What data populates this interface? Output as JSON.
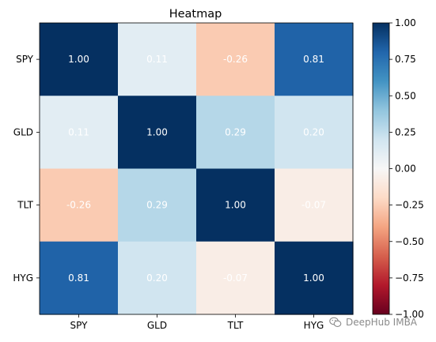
{
  "chart_data": {
    "type": "heatmap",
    "title": "Heatmap",
    "rows": [
      "SPY",
      "GLD",
      "TLT",
      "HYG"
    ],
    "columns": [
      "SPY",
      "GLD",
      "TLT",
      "HYG"
    ],
    "values": [
      [
        1.0,
        0.11,
        -0.26,
        0.81
      ],
      [
        0.11,
        1.0,
        0.29,
        0.2
      ],
      [
        -0.26,
        0.29,
        1.0,
        -0.07
      ],
      [
        0.81,
        0.2,
        -0.07,
        1.0
      ]
    ],
    "value_labels": [
      [
        "1.00",
        "0.11",
        "-0.26",
        "0.81"
      ],
      [
        "0.11",
        "1.00",
        "0.29",
        "0.20"
      ],
      [
        "-0.26",
        "0.29",
        "1.00",
        "-0.07"
      ],
      [
        "0.81",
        "0.20",
        "-0.07",
        "1.00"
      ]
    ],
    "colormap": "RdBu",
    "vmin": -1.0,
    "vmax": 1.0,
    "colorbar": {
      "ticks": [
        1.0,
        0.75,
        0.5,
        0.25,
        0.0,
        -0.25,
        -0.5,
        -0.75,
        -1.0
      ],
      "tick_labels": [
        "1.00",
        "0.75",
        "0.50",
        "0.25",
        "0.00",
        "−0.25",
        "−0.50",
        "−0.75",
        "−1.00"
      ],
      "placement": "right"
    },
    "grid": false
  },
  "watermark": {
    "text": "DeepHub IMBA",
    "icon": "wechat-icon",
    "color": "#8a8a8a"
  }
}
